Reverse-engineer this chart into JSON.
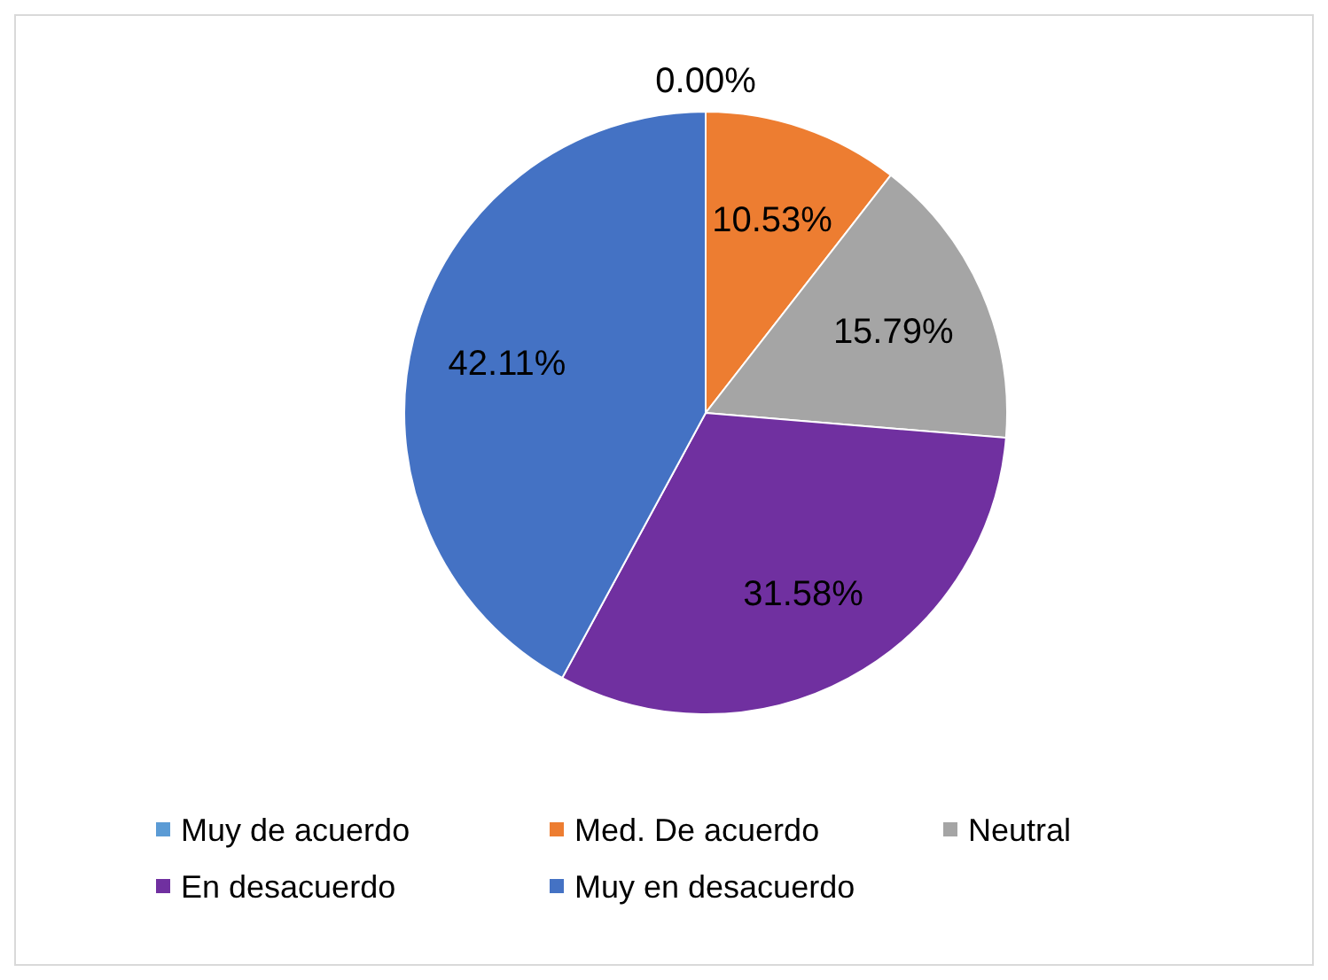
{
  "chart_data": {
    "type": "pie",
    "categories": [
      "Muy de acuerdo",
      "Med. De acuerdo",
      "Neutral",
      "En desacuerdo",
      "Muy en desacuerdo"
    ],
    "values": [
      0,
      10.53,
      15.79,
      31.58,
      42.11
    ],
    "colors": [
      "#5b9bd5",
      "#ed7d31",
      "#a5a5a5",
      "#7030a0",
      "#4472c4"
    ],
    "value_labels": [
      "0.00%",
      "10.53%",
      "15.79%",
      "31.58%",
      "42.11%"
    ],
    "legend": "bottom"
  }
}
